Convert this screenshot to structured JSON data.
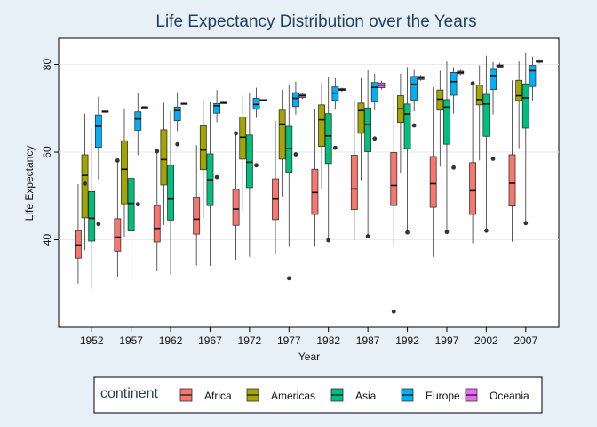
{
  "chart_data": {
    "type": "boxplot",
    "title": "Life Expectancy Distribution over the Years",
    "xlabel": "Year",
    "ylabel": "Life Expectancy",
    "ylim": [
      20,
      86
    ],
    "y_ticks": [
      40,
      60,
      80
    ],
    "grid": true,
    "legend": {
      "title": "continent",
      "position": "bottom"
    },
    "categories": [
      "1952",
      "1957",
      "1962",
      "1967",
      "1972",
      "1977",
      "1982",
      "1987",
      "1992",
      "1997",
      "2002",
      "2007"
    ],
    "series": [
      {
        "name": "Africa",
        "color": "#f8766d",
        "boxes": [
          {
            "min": 30.0,
            "q1": 35.8,
            "median": 38.8,
            "q3": 42.1,
            "max": 52.7,
            "outliers": []
          },
          {
            "min": 31.6,
            "q1": 37.4,
            "median": 40.6,
            "q3": 44.8,
            "max": 58.1,
            "outliers": [
              58.1
            ]
          },
          {
            "min": 32.8,
            "q1": 39.5,
            "median": 42.6,
            "q3": 47.8,
            "max": 60.2,
            "outliers": [
              60.2
            ]
          },
          {
            "min": 34.1,
            "q1": 41.3,
            "median": 44.7,
            "q3": 49.6,
            "max": 61.6,
            "outliers": []
          },
          {
            "min": 35.4,
            "q1": 43.3,
            "median": 47.0,
            "q3": 51.5,
            "max": 64.3,
            "outliers": [
              64.3
            ]
          },
          {
            "min": 36.8,
            "q1": 44.6,
            "median": 49.3,
            "q3": 53.9,
            "max": 67.1,
            "outliers": []
          },
          {
            "min": 38.4,
            "q1": 45.8,
            "median": 50.8,
            "q3": 56.1,
            "max": 69.9,
            "outliers": []
          },
          {
            "min": 39.9,
            "q1": 46.9,
            "median": 51.6,
            "q3": 59.3,
            "max": 71.9,
            "outliers": []
          },
          {
            "min": 38.3,
            "q1": 47.8,
            "median": 52.4,
            "q3": 59.9,
            "max": 73.6,
            "outliers": [
              23.6
            ]
          },
          {
            "min": 36.1,
            "q1": 47.4,
            "median": 52.8,
            "q3": 59.0,
            "max": 74.8,
            "outliers": []
          },
          {
            "min": 39.2,
            "q1": 45.8,
            "median": 51.2,
            "q3": 57.6,
            "max": 75.7,
            "outliers": [
              75.7
            ]
          },
          {
            "min": 39.6,
            "q1": 47.7,
            "median": 52.9,
            "q3": 59.4,
            "max": 76.4,
            "outliers": []
          }
        ]
      },
      {
        "name": "Americas",
        "color": "#a3a500",
        "boxes": [
          {
            "min": 37.6,
            "q1": 45.0,
            "median": 54.7,
            "q3": 59.4,
            "max": 68.8,
            "outliers": [
              52.8
            ]
          },
          {
            "min": 40.7,
            "q1": 48.2,
            "median": 56.1,
            "q3": 62.6,
            "max": 70.0,
            "outliers": []
          },
          {
            "min": 43.4,
            "q1": 52.5,
            "median": 58.3,
            "q3": 65.1,
            "max": 71.3,
            "outliers": []
          },
          {
            "min": 45.0,
            "q1": 56.0,
            "median": 60.5,
            "q3": 66.0,
            "max": 72.1,
            "outliers": []
          },
          {
            "min": 46.7,
            "q1": 58.4,
            "median": 63.4,
            "q3": 68.0,
            "max": 72.9,
            "outliers": []
          },
          {
            "min": 49.9,
            "q1": 58.4,
            "median": 66.4,
            "q3": 69.6,
            "max": 74.2,
            "outliers": []
          },
          {
            "min": 51.5,
            "q1": 61.3,
            "median": 67.4,
            "q3": 70.8,
            "max": 75.8,
            "outliers": []
          },
          {
            "min": 53.6,
            "q1": 64.3,
            "median": 69.5,
            "q3": 71.2,
            "max": 76.9,
            "outliers": []
          },
          {
            "min": 55.1,
            "q1": 66.8,
            "median": 69.9,
            "q3": 72.9,
            "max": 77.9,
            "outliers": []
          },
          {
            "min": 56.7,
            "q1": 69.6,
            "median": 72.1,
            "q3": 74.2,
            "max": 78.6,
            "outliers": []
          },
          {
            "min": 58.1,
            "q1": 70.8,
            "median": 72.0,
            "q3": 75.3,
            "max": 79.8,
            "outliers": []
          },
          {
            "min": 60.9,
            "q1": 71.8,
            "median": 72.9,
            "q3": 76.4,
            "max": 80.7,
            "outliers": []
          }
        ]
      },
      {
        "name": "Asia",
        "color": "#00bf7d",
        "boxes": [
          {
            "min": 28.8,
            "q1": 39.7,
            "median": 44.9,
            "q3": 51.0,
            "max": 65.4,
            "outliers": []
          },
          {
            "min": 30.3,
            "q1": 42.0,
            "median": 48.3,
            "q3": 54.0,
            "max": 67.8,
            "outliers": []
          },
          {
            "min": 32.0,
            "q1": 44.5,
            "median": 49.3,
            "q3": 57.0,
            "max": 69.4,
            "outliers": []
          },
          {
            "min": 34.0,
            "q1": 47.8,
            "median": 53.7,
            "q3": 59.6,
            "max": 71.4,
            "outliers": []
          },
          {
            "min": 36.1,
            "q1": 51.9,
            "median": 57.7,
            "q3": 63.9,
            "max": 73.4,
            "outliers": []
          },
          {
            "min": 38.4,
            "q1": 55.4,
            "median": 60.8,
            "q3": 65.9,
            "max": 75.4,
            "outliers": [
              31.2
            ]
          },
          {
            "min": 39.9,
            "q1": 57.4,
            "median": 63.7,
            "q3": 68.8,
            "max": 77.1,
            "outliers": [
              39.9
            ]
          },
          {
            "min": 40.8,
            "q1": 60.1,
            "median": 66.3,
            "q3": 70.1,
            "max": 78.7,
            "outliers": [
              40.8
            ]
          },
          {
            "min": 41.7,
            "q1": 60.8,
            "median": 68.7,
            "q3": 71.0,
            "max": 79.4,
            "outliers": [
              41.7
            ]
          },
          {
            "min": 41.8,
            "q1": 61.8,
            "median": 70.3,
            "q3": 72.0,
            "max": 80.7,
            "outliers": [
              41.8
            ]
          },
          {
            "min": 42.1,
            "q1": 63.6,
            "median": 71.0,
            "q3": 73.2,
            "max": 82.0,
            "outliers": [
              42.1
            ]
          },
          {
            "min": 43.8,
            "q1": 65.5,
            "median": 72.4,
            "q3": 75.6,
            "max": 82.6,
            "outliers": [
              43.8
            ]
          }
        ]
      },
      {
        "name": "Europe",
        "color": "#00b0f6",
        "boxes": [
          {
            "min": 53.8,
            "q1": 61.1,
            "median": 65.9,
            "q3": 68.5,
            "max": 72.7,
            "outliers": [
              43.6
            ]
          },
          {
            "min": 59.3,
            "q1": 65.0,
            "median": 67.6,
            "q3": 69.2,
            "max": 73.5,
            "outliers": [
              48.1
            ]
          },
          {
            "min": 64.8,
            "q1": 67.2,
            "median": 69.5,
            "q3": 70.3,
            "max": 73.7,
            "outliers": [
              61.8
            ]
          },
          {
            "min": 66.8,
            "q1": 68.9,
            "median": 70.6,
            "q3": 71.1,
            "max": 74.2,
            "outliers": [
              54.3
            ]
          },
          {
            "min": 67.8,
            "q1": 69.8,
            "median": 70.9,
            "q3": 72.3,
            "max": 74.7,
            "outliers": [
              57.0
            ]
          },
          {
            "min": 68.6,
            "q1": 70.4,
            "median": 72.3,
            "q3": 73.6,
            "max": 76.1,
            "outliers": [
              59.5
            ]
          },
          {
            "min": 69.8,
            "q1": 71.8,
            "median": 73.5,
            "q3": 74.9,
            "max": 76.9,
            "outliers": [
              61.0
            ]
          },
          {
            "min": 69.6,
            "q1": 71.5,
            "median": 74.8,
            "q3": 75.9,
            "max": 77.9,
            "outliers": [
              63.1
            ]
          },
          {
            "min": 69.3,
            "q1": 71.9,
            "median": 75.5,
            "q3": 77.3,
            "max": 78.8,
            "outliers": [
              66.1
            ]
          },
          {
            "min": 68.8,
            "q1": 73.0,
            "median": 76.1,
            "q3": 78.2,
            "max": 79.4,
            "outliers": [
              56.5
            ]
          },
          {
            "min": 68.6,
            "q1": 74.3,
            "median": 77.5,
            "q3": 78.9,
            "max": 80.6,
            "outliers": [
              58.5
            ]
          },
          {
            "min": 71.8,
            "q1": 75.0,
            "median": 78.6,
            "q3": 79.8,
            "max": 81.8,
            "outliers": []
          }
        ]
      },
      {
        "name": "Oceania",
        "color": "#e76bf3",
        "boxes": [
          {
            "min": 69.1,
            "q1": 69.2,
            "median": 69.3,
            "q3": 69.4,
            "max": 69.4,
            "outliers": []
          },
          {
            "min": 70.3,
            "q1": 70.3,
            "median": 70.3,
            "q3": 70.3,
            "max": 70.3,
            "outliers": []
          },
          {
            "min": 71.0,
            "q1": 71.1,
            "median": 71.1,
            "q3": 71.2,
            "max": 71.2,
            "outliers": []
          },
          {
            "min": 71.1,
            "q1": 71.2,
            "median": 71.3,
            "q3": 71.4,
            "max": 71.5,
            "outliers": []
          },
          {
            "min": 71.9,
            "q1": 71.9,
            "median": 71.9,
            "q3": 72.0,
            "max": 72.0,
            "outliers": []
          },
          {
            "min": 72.2,
            "q1": 72.5,
            "median": 72.9,
            "q3": 73.2,
            "max": 73.5,
            "outliers": []
          },
          {
            "min": 73.8,
            "q1": 74.1,
            "median": 74.3,
            "q3": 74.5,
            "max": 74.7,
            "outliers": []
          },
          {
            "min": 74.3,
            "q1": 74.7,
            "median": 75.3,
            "q3": 75.8,
            "max": 76.3,
            "outliers": []
          },
          {
            "min": 76.3,
            "q1": 76.6,
            "median": 76.9,
            "q3": 77.3,
            "max": 77.6,
            "outliers": []
          },
          {
            "min": 77.6,
            "q1": 77.9,
            "median": 78.2,
            "q3": 78.5,
            "max": 78.8,
            "outliers": []
          },
          {
            "min": 79.1,
            "q1": 79.4,
            "median": 79.7,
            "q3": 79.9,
            "max": 80.4,
            "outliers": []
          },
          {
            "min": 80.2,
            "q1": 80.5,
            "median": 80.7,
            "q3": 81.0,
            "max": 81.2,
            "outliers": []
          }
        ]
      }
    ]
  }
}
